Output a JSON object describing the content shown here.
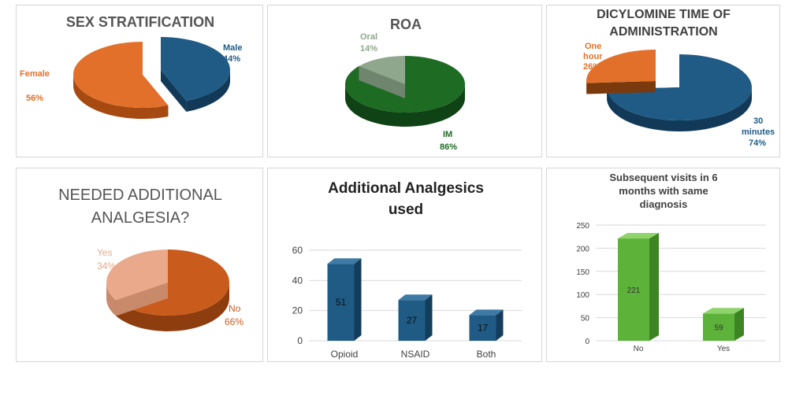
{
  "colors": {
    "orange": "#e2702a",
    "orange_dark": "#a64a12",
    "blue": "#1f5b85",
    "blue_dark": "#123a58",
    "green": "#1e6b24",
    "green_dark": "#0f4214",
    "gray_green": "#8fa88d",
    "salmon": "#e9a98a",
    "brown_orange": "#c95c1c",
    "bar_blue": "#1f5b85",
    "bar_green": "#5db33a",
    "grid": "#d9d9d9",
    "axis_text": "#555555"
  },
  "chart_data": [
    {
      "type": "pie",
      "title": "SEX STRATIFICATION",
      "slices": [
        {
          "label": "Male",
          "value": 44,
          "display": "44%"
        },
        {
          "label": "Female",
          "value": 56,
          "display": "56%"
        }
      ],
      "style": "3d exploded"
    },
    {
      "type": "pie",
      "title": "ROA",
      "slices": [
        {
          "label": "Oral",
          "value": 14,
          "display": "14%"
        },
        {
          "label": "IM",
          "value": 86,
          "display": "86%"
        }
      ],
      "style": "3d"
    },
    {
      "type": "pie",
      "title": "DICYLOMINE TIME OF ADMINISTRATION",
      "slices": [
        {
          "label": "One hour",
          "value": 26,
          "display": "26%"
        },
        {
          "label": "30 minutes",
          "value": 74,
          "display": "74%"
        }
      ],
      "style": "3d exploded"
    },
    {
      "type": "pie",
      "title": "NEEDED ADDITIONAL ANALGESIA?",
      "slices": [
        {
          "label": "Yes",
          "value": 34,
          "display": "34%"
        },
        {
          "label": "No",
          "value": 66,
          "display": "66%"
        }
      ],
      "style": "3d"
    },
    {
      "type": "bar",
      "title": "Additional Analgesics used",
      "categories": [
        "Opioid",
        "NSAID",
        "Both"
      ],
      "values": [
        51,
        27,
        17
      ],
      "ylim": [
        0,
        60
      ],
      "yticks": [
        0,
        20,
        40,
        60
      ],
      "grid": true
    },
    {
      "type": "bar",
      "title": "Subsequent visits in 6 months with same diagnosis",
      "categories": [
        "No",
        "Yes"
      ],
      "values": [
        221,
        59
      ],
      "ylim": [
        0,
        250
      ],
      "yticks": [
        0,
        50,
        100,
        150,
        200,
        250
      ],
      "grid": true
    }
  ]
}
